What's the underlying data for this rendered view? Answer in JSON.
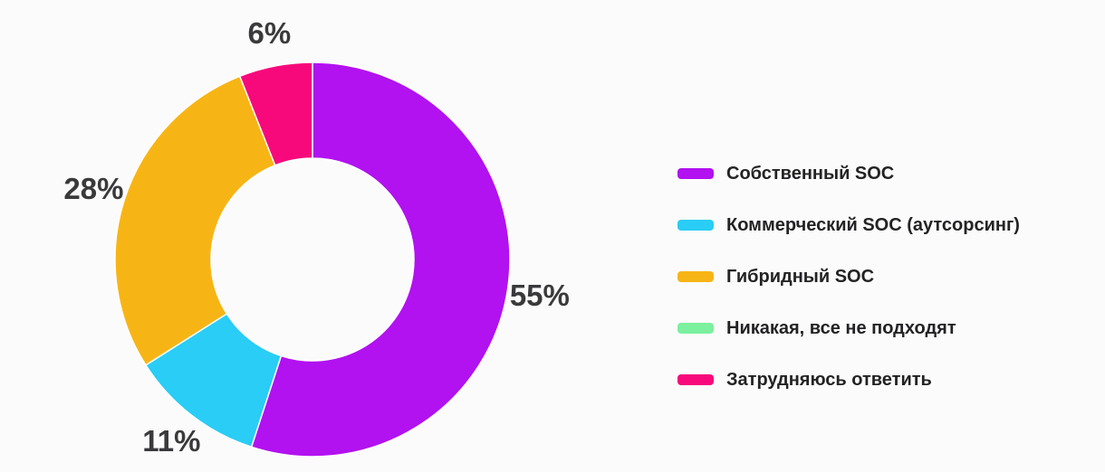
{
  "chart_data": {
    "type": "pie",
    "subtype": "donut",
    "title": "",
    "legend_position": "right",
    "background": "#FBFBFB",
    "label_color": "#3A3A3C",
    "slices": [
      {
        "label": "Собственный SOC",
        "value": 55,
        "pct_label": "55%",
        "color": "#B211F0"
      },
      {
        "label": "Коммерческий SOC (аутсорсинг)",
        "value": 11,
        "pct_label": "11%",
        "color": "#29CDF5"
      },
      {
        "label": "Гибридный SOC",
        "value": 28,
        "pct_label": "28%",
        "color": "#F7B515"
      },
      {
        "label": "Никакая, все не подходят",
        "value": 0,
        "pct_label": "",
        "color": "#7BF09E"
      },
      {
        "label": "Затрудняюсь ответить",
        "value": 6,
        "pct_label": "6%",
        "color": "#F7097B"
      }
    ]
  }
}
